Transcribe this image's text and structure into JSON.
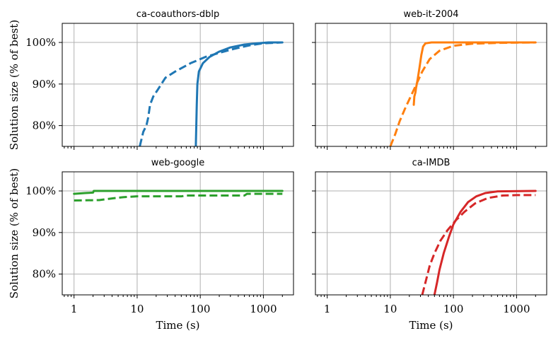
{
  "chart_data": [
    {
      "type": "line",
      "title": "ca-coauthors-dblp",
      "xlabel": "",
      "ylabel": "Solution size (% of best)",
      "xscale": "log",
      "xlim": [
        0.65,
        3000
      ],
      "ylim": [
        75,
        104.6
      ],
      "xticks": [
        1,
        10,
        100,
        1000
      ],
      "xtick_labels": [],
      "yticks": [
        80,
        90,
        100
      ],
      "ytick_labels": [
        "80%",
        "90%",
        "100%"
      ],
      "grid": true,
      "series": [
        {
          "style": "solid",
          "color": "#1f77b4",
          "points": [
            [
              85,
              75
            ],
            [
              86.5,
              80
            ],
            [
              88,
              85
            ],
            [
              90,
              90
            ],
            [
              95,
              93
            ],
            [
              110,
              95
            ],
            [
              140,
              96.5
            ],
            [
              200,
              97.8
            ],
            [
              300,
              98.8
            ],
            [
              500,
              99.5
            ],
            [
              800,
              99.8
            ],
            [
              1200,
              100
            ],
            [
              2000,
              100
            ]
          ]
        },
        {
          "style": "dashed",
          "color": "#1f77b4",
          "points": [
            [
              11,
              75
            ],
            [
              12.5,
              78.5
            ],
            [
              14,
              80
            ],
            [
              15,
              82
            ],
            [
              16,
              85
            ],
            [
              18,
              87
            ],
            [
              22,
              89
            ],
            [
              28,
              91.5
            ],
            [
              40,
              93
            ],
            [
              70,
              95
            ],
            [
              120,
              96.5
            ],
            [
              200,
              97.5
            ],
            [
              350,
              98.5
            ],
            [
              600,
              99.3
            ],
            [
              1000,
              99.8
            ],
            [
              2000,
              100
            ]
          ]
        }
      ]
    },
    {
      "type": "line",
      "title": "web-it-2004",
      "xlabel": "",
      "ylabel": "",
      "xscale": "log",
      "xlim": [
        0.65,
        3000
      ],
      "ylim": [
        75,
        104.6
      ],
      "xticks": [
        1,
        10,
        100,
        1000
      ],
      "xtick_labels": [],
      "yticks": [
        80,
        90,
        100
      ],
      "ytick_labels": [],
      "grid": true,
      "series": [
        {
          "style": "solid",
          "color": "#ff7f0e",
          "points": [
            [
              23.5,
              85
            ],
            [
              24,
              87
            ],
            [
              25,
              88
            ],
            [
              25.5,
              89
            ],
            [
              27,
              91
            ],
            [
              29,
              94
            ],
            [
              31,
              97
            ],
            [
              33,
              99
            ],
            [
              36,
              99.8
            ],
            [
              45,
              100
            ],
            [
              100,
              100
            ],
            [
              2000,
              100
            ]
          ]
        },
        {
          "style": "dashed",
          "color": "#ff7f0e",
          "points": [
            [
              10,
              75
            ],
            [
              12,
              78
            ],
            [
              14,
              81
            ],
            [
              17,
              84
            ],
            [
              21,
              87
            ],
            [
              26,
              90
            ],
            [
              32,
              93
            ],
            [
              42,
              96
            ],
            [
              60,
              98
            ],
            [
              100,
              99.2
            ],
            [
              200,
              99.7
            ],
            [
              500,
              99.9
            ],
            [
              2000,
              100
            ]
          ]
        }
      ]
    },
    {
      "type": "line",
      "title": "web-google",
      "xlabel": "Time (s)",
      "ylabel": "Solution size (% of best)",
      "xscale": "log",
      "xlim": [
        0.65,
        3000
      ],
      "ylim": [
        75,
        104.6
      ],
      "xticks": [
        1,
        10,
        100,
        1000
      ],
      "xtick_labels": [
        "1",
        "10",
        "100",
        "1000"
      ],
      "yticks": [
        80,
        90,
        100
      ],
      "ytick_labels": [
        "80%",
        "90%",
        "100%"
      ],
      "grid": true,
      "series": [
        {
          "style": "solid",
          "color": "#2ca02c",
          "points": [
            [
              1,
              99.3
            ],
            [
              1.5,
              99.5
            ],
            [
              2,
              99.6
            ],
            [
              2.05,
              100
            ],
            [
              10,
              100
            ],
            [
              100,
              100
            ],
            [
              1000,
              100
            ],
            [
              2000,
              100
            ]
          ]
        },
        {
          "style": "dashed",
          "color": "#2ca02c",
          "points": [
            [
              1,
              97.7
            ],
            [
              2.5,
              97.8
            ],
            [
              4,
              98.2
            ],
            [
              6,
              98.5
            ],
            [
              10,
              98.7
            ],
            [
              50,
              98.7
            ],
            [
              60,
              98.9
            ],
            [
              100,
              98.9
            ],
            [
              500,
              98.9
            ],
            [
              550,
              99.3
            ],
            [
              2000,
              99.3
            ]
          ]
        }
      ]
    },
    {
      "type": "line",
      "title": "ca-IMDB",
      "xlabel": "Time (s)",
      "ylabel": "",
      "xscale": "log",
      "xlim": [
        0.65,
        3000
      ],
      "ylim": [
        75,
        104.6
      ],
      "xticks": [
        1,
        10,
        100,
        1000
      ],
      "xtick_labels": [
        "1",
        "10",
        "100",
        "1000"
      ],
      "yticks": [
        80,
        90,
        100
      ],
      "ytick_labels": [],
      "grid": true,
      "series": [
        {
          "style": "solid",
          "color": "#d62728",
          "points": [
            [
              50,
              75
            ],
            [
              55,
              78
            ],
            [
              60,
              81
            ],
            [
              70,
              85
            ],
            [
              85,
              89
            ],
            [
              100,
              92
            ],
            [
              130,
              95
            ],
            [
              170,
              97.3
            ],
            [
              230,
              98.7
            ],
            [
              320,
              99.5
            ],
            [
              500,
              99.9
            ],
            [
              2000,
              100
            ]
          ]
        },
        {
          "style": "dashed",
          "color": "#d62728",
          "points": [
            [
              32,
              75
            ],
            [
              36,
              78
            ],
            [
              42,
              82
            ],
            [
              50,
              85
            ],
            [
              62,
              88
            ],
            [
              80,
              90.5
            ],
            [
              110,
              93
            ],
            [
              150,
              95
            ],
            [
              220,
              97
            ],
            [
              350,
              98.3
            ],
            [
              600,
              98.9
            ],
            [
              1000,
              99
            ],
            [
              2000,
              99
            ]
          ]
        }
      ]
    }
  ]
}
